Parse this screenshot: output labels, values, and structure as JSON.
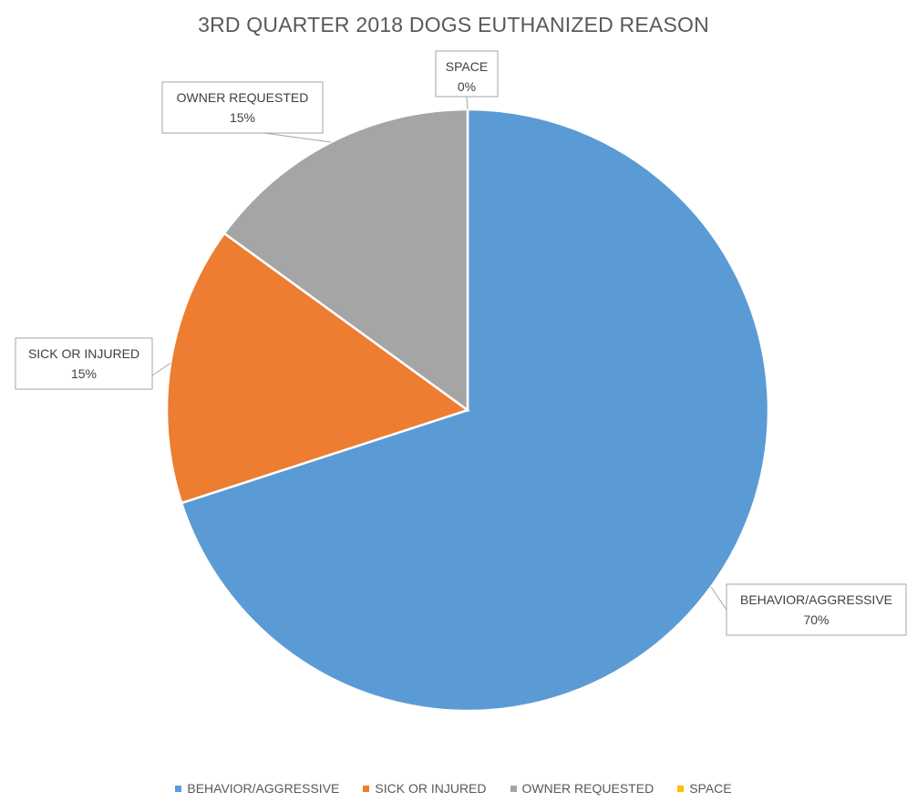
{
  "chart_data": {
    "type": "pie",
    "title": "3RD QUARTER 2018 DOGS EUTHANIZED REASON",
    "categories": [
      "BEHAVIOR/AGGRESSIVE",
      "SICK OR INJURED",
      "OWNER REQUESTED",
      "SPACE"
    ],
    "values": [
      70,
      15,
      15,
      0
    ],
    "labels": [
      "70%",
      "15%",
      "15%",
      "0%"
    ],
    "colors": [
      "#5B9BD5",
      "#ED7D31",
      "#A5A5A5",
      "#FFC000"
    ],
    "legend_position": "bottom",
    "start_angle": "12 o'clock, clockwise"
  }
}
